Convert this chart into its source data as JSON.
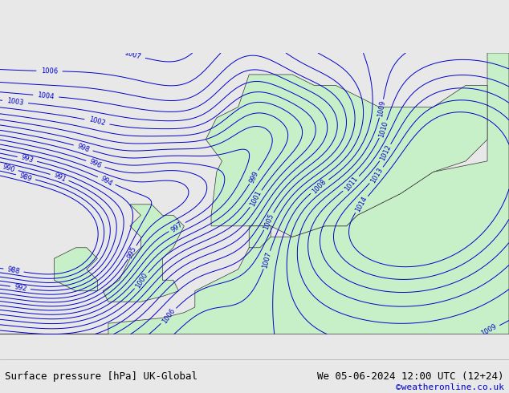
{
  "title_left": "Surface pressure [hPa] UK-Global",
  "title_right": "We 05-06-2024 12:00 UTC (12+24)",
  "credit": "©weatheronline.co.uk",
  "bg_color": "#e8e8e8",
  "land_color": "#c8f0c8",
  "sea_color": "#e8e8e8",
  "isobar_color": "#0000cc",
  "coastline_color": "#333333",
  "text_color": "#000000",
  "credit_color": "#0000cc",
  "bottom_bar_color": "#ffffff",
  "font_size_label": 8,
  "font_size_title": 9,
  "font_size_credit": 8
}
